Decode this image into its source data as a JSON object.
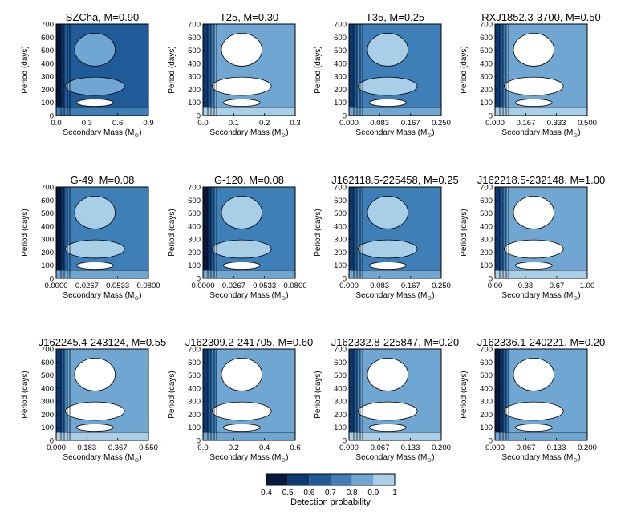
{
  "shared": {
    "ylabel": "Period (days)",
    "xlabel": "Secondary Mass (M",
    "xlabel_sub": "⊙",
    "xlabel_close": ")",
    "yticks": [
      "0",
      "100",
      "200",
      "300",
      "400",
      "500",
      "600",
      "700"
    ],
    "ylim": [
      0,
      700
    ]
  },
  "colorbar": {
    "label": "Detection probability",
    "ticks": [
      "0.4",
      "0.5",
      "0.6",
      "0.7",
      "0.8",
      "0.9",
      "1"
    ],
    "levels": [
      0.4,
      0.5,
      0.6,
      0.7,
      0.8,
      0.9,
      1.0
    ],
    "colors": [
      "#08183e",
      "#0b3a72",
      "#1f5b99",
      "#3f7fb8",
      "#6fa6d2",
      "#a9cfe8",
      "#ffffff"
    ]
  },
  "chart_data": [
    {
      "type": "heatmap",
      "title": "SZCha, M=0.90",
      "xticks": [
        "0.0",
        "0.3",
        "0.6",
        "0.9"
      ],
      "xlim": [
        0,
        0.9
      ],
      "ylim": [
        0,
        700
      ],
      "zone_values": [
        0.45,
        0.55,
        0.6,
        0.65,
        0.7,
        0.8
      ],
      "dominant_level": 0.6
    },
    {
      "type": "heatmap",
      "title": "T25, M=0.30",
      "xticks": [
        "0.0",
        "0.1",
        "0.2",
        "0.3"
      ],
      "xlim": [
        0,
        0.3
      ],
      "ylim": [
        0,
        700
      ],
      "zone_values": [
        0.55,
        0.65,
        0.75,
        0.85,
        0.9,
        1.0
      ],
      "dominant_level": 0.8
    },
    {
      "type": "heatmap",
      "title": "T35, M=0.25",
      "xticks": [
        "0.000",
        "0.083",
        "0.167",
        "0.250"
      ],
      "xlim": [
        0,
        0.25
      ],
      "ylim": [
        0,
        700
      ],
      "zone_values": [
        0.55,
        0.65,
        0.7,
        0.75,
        0.8,
        0.9
      ],
      "dominant_level": 0.7
    },
    {
      "type": "heatmap",
      "title": "RXJ1852.3-3700, M=0.50",
      "xticks": [
        "0.000",
        "0.167",
        "0.333",
        "0.500"
      ],
      "xlim": [
        0,
        0.5
      ],
      "ylim": [
        0,
        700
      ],
      "zone_values": [
        0.55,
        0.65,
        0.75,
        0.85,
        0.9,
        1.0
      ],
      "dominant_level": 0.8
    },
    {
      "type": "heatmap",
      "title": "G-49, M=0.08",
      "xticks": [
        "0.0000",
        "0.0267",
        "0.0533",
        "0.0800"
      ],
      "xlim": [
        0,
        0.08
      ],
      "ylim": [
        0,
        700
      ],
      "zone_values": [
        0.45,
        0.55,
        0.65,
        0.7,
        0.8,
        0.9
      ],
      "dominant_level": 0.7
    },
    {
      "type": "heatmap",
      "title": "G-120, M=0.08",
      "xticks": [
        "0.0000",
        "0.0267",
        "0.0533",
        "0.0800"
      ],
      "xlim": [
        0,
        0.08
      ],
      "ylim": [
        0,
        700
      ],
      "zone_values": [
        0.45,
        0.55,
        0.65,
        0.7,
        0.8,
        0.9
      ],
      "dominant_level": 0.7
    },
    {
      "type": "heatmap",
      "title": "J162118.5-225458, M=0.25",
      "xticks": [
        "0.000",
        "0.083",
        "0.167",
        "0.250"
      ],
      "xlim": [
        0,
        0.25
      ],
      "ylim": [
        0,
        700
      ],
      "zone_values": [
        0.55,
        0.65,
        0.7,
        0.75,
        0.8,
        0.9
      ],
      "dominant_level": 0.7
    },
    {
      "type": "heatmap",
      "title": "J162218.5-232148, M=1.00",
      "xticks": [
        "0.00",
        "0.33",
        "0.67",
        "1.00"
      ],
      "xlim": [
        0,
        1.0
      ],
      "ylim": [
        0,
        700
      ],
      "zone_values": [
        0.55,
        0.65,
        0.75,
        0.85,
        0.9,
        1.0
      ],
      "dominant_level": 0.8
    },
    {
      "type": "heatmap",
      "title": "J162245.4-243124, M=0.55",
      "xticks": [
        "0.000",
        "0.183",
        "0.367",
        "0.550"
      ],
      "xlim": [
        0,
        0.55
      ],
      "ylim": [
        0,
        700
      ],
      "zone_values": [
        0.55,
        0.65,
        0.75,
        0.85,
        0.9,
        1.0
      ],
      "dominant_level": 0.8
    },
    {
      "type": "heatmap",
      "title": "J162309.2-241705, M=0.60",
      "xticks": [
        "0.0",
        "0.2",
        "0.4",
        "0.6"
      ],
      "xlim": [
        0,
        0.6
      ],
      "ylim": [
        0,
        700
      ],
      "zone_values": [
        0.55,
        0.65,
        0.7,
        0.75,
        0.85,
        1.0
      ],
      "dominant_level": 0.8
    },
    {
      "type": "heatmap",
      "title": "J162332.8-225847, M=0.20",
      "xticks": [
        "0.000",
        "0.067",
        "0.133",
        "0.200"
      ],
      "xlim": [
        0,
        0.2
      ],
      "ylim": [
        0,
        700
      ],
      "zone_values": [
        0.55,
        0.65,
        0.75,
        0.85,
        0.9,
        1.0
      ],
      "dominant_level": 0.8
    },
    {
      "type": "heatmap",
      "title": "J162336.1-240221, M=0.20",
      "xticks": [
        "0.000",
        "0.067",
        "0.133",
        "0.200"
      ],
      "xlim": [
        0,
        0.2
      ],
      "ylim": [
        0,
        700
      ],
      "zone_values": [
        0.45,
        0.55,
        0.65,
        0.75,
        0.85,
        1.0
      ],
      "dominant_level": 0.8
    }
  ]
}
